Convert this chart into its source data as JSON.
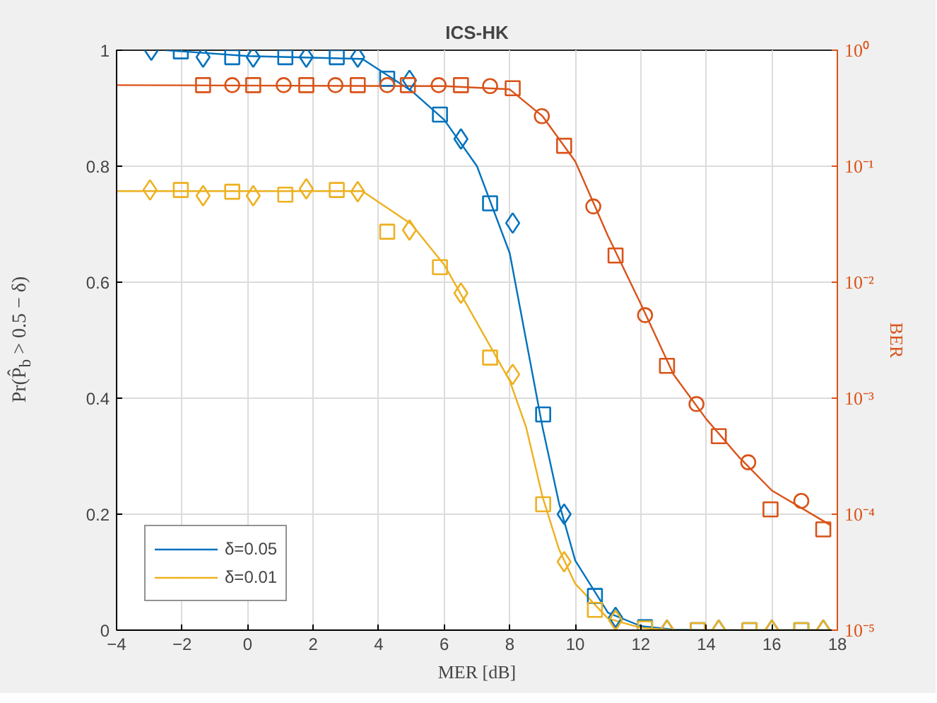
{
  "chart_data": {
    "type": "line",
    "title": "ICS-HK",
    "xlabel": "MER [dB]",
    "ylabel": "Pr(P̂$_{b}$ > 0.5 − δ)",
    "y2label": "BER",
    "xlim": [
      -4,
      18
    ],
    "xticks": [
      -4,
      -2,
      0,
      2,
      4,
      6,
      8,
      10,
      12,
      14,
      16,
      18
    ],
    "ylim": [
      0,
      1
    ],
    "yticks": [
      0,
      0.2,
      0.4,
      0.6,
      0.8,
      1
    ],
    "y2lim": [
      1e-05,
      1
    ],
    "y2ticks": [
      {
        "value": 1e-05,
        "label": "10⁻⁵"
      },
      {
        "value": 0.0001,
        "label": "10⁻⁴"
      },
      {
        "value": 0.001,
        "label": "10⁻³"
      },
      {
        "value": 0.01,
        "label": "10⁻²"
      },
      {
        "value": 0.1,
        "label": "10⁻¹"
      },
      {
        "value": 1,
        "label": "10⁰"
      }
    ],
    "log": "y2",
    "grid": true,
    "legend": "bottom left",
    "series": [
      {
        "name": "δ=0.05",
        "color": "#0072bd",
        "marker": "none",
        "x": [
          -2.5,
          0,
          3.5,
          5,
          6,
          7,
          8,
          8.5,
          9,
          9.5,
          10,
          11,
          12,
          13,
          14,
          17.8
        ],
        "values": [
          1.0,
          0.99,
          0.985,
          0.93,
          0.88,
          0.8,
          0.65,
          0.5,
          0.35,
          0.22,
          0.12,
          0.03,
          0.007,
          0.001,
          0,
          0
        ]
      },
      {
        "name": "δ=0.01",
        "color": "#edb120",
        "marker": "none",
        "x": [
          -4,
          3.5,
          5,
          6,
          7,
          8,
          8.5,
          9,
          9.5,
          10,
          11,
          12,
          13,
          17.8
        ],
        "values": [
          0.757,
          0.757,
          0.7,
          0.63,
          0.53,
          0.43,
          0.35,
          0.23,
          0.14,
          0.08,
          0.02,
          0.004,
          0,
          0
        ]
      },
      {
        "axis": "y2",
        "color": "#d95319",
        "marker": "none",
        "x": [
          -4,
          6,
          8,
          9,
          10,
          11,
          12,
          13,
          14,
          15,
          16,
          17.8
        ],
        "values": [
          0.5,
          0.49,
          0.46,
          0.27,
          0.11,
          0.025,
          0.0065,
          0.0016,
          0.00066,
          0.00031,
          0.00016,
          8e-05
        ]
      },
      {
        "type": "scatter",
        "color": "#0072bd",
        "marker": "square",
        "x": [
          -2.04,
          -0.47,
          1.15,
          2.72,
          4.26,
          5.87,
          7.4,
          9.02,
          10.6,
          12.13,
          13.74,
          15.32,
          16.9
        ],
        "values": [
          0.998,
          0.988,
          0.988,
          0.988,
          0.951,
          0.889,
          0.736,
          0.372,
          0.059,
          0.005,
          0,
          0,
          0
        ]
      },
      {
        "type": "scatter",
        "color": "#0072bd",
        "marker": "diamond",
        "x": [
          -2.94,
          -1.36,
          0.17,
          1.79,
          3.36,
          4.94,
          6.51,
          8.09,
          9.66,
          11.23,
          12.8,
          14.38,
          16.0,
          17.57
        ],
        "values": [
          1.0,
          0.988,
          0.988,
          0.988,
          0.988,
          0.948,
          0.847,
          0.702,
          0.2,
          0.022,
          0,
          0,
          0,
          0
        ]
      },
      {
        "type": "scatter",
        "color": "#edb120",
        "marker": "square",
        "x": [
          -2.04,
          -0.47,
          1.15,
          2.72,
          4.26,
          5.87,
          7.4,
          9.02,
          10.6,
          12.13,
          13.74,
          15.32,
          16.9
        ],
        "values": [
          0.759,
          0.756,
          0.751,
          0.759,
          0.687,
          0.626,
          0.47,
          0.217,
          0.035,
          0.003,
          0,
          0,
          0
        ]
      },
      {
        "type": "scatter",
        "color": "#edb120",
        "marker": "diamond",
        "x": [
          -2.98,
          -1.36,
          0.17,
          1.79,
          3.36,
          4.94,
          6.51,
          8.09,
          9.66,
          11.23,
          12.8,
          14.38,
          16.0,
          17.57
        ],
        "values": [
          0.759,
          0.749,
          0.749,
          0.761,
          0.756,
          0.69,
          0.581,
          0.441,
          0.118,
          0.017,
          0,
          0,
          0,
          0
        ]
      },
      {
        "type": "scatter",
        "axis": "y2",
        "color": "#d95319",
        "marker": "square",
        "x": [
          -1.36,
          0.17,
          1.79,
          3.36,
          4.89,
          6.51,
          8.09,
          9.66,
          11.23,
          12.8,
          14.38,
          15.96,
          17.57
        ],
        "values": [
          0.5,
          0.5,
          0.5,
          0.5,
          0.5,
          0.5,
          0.47,
          0.15,
          0.017,
          0.0019,
          0.00047,
          0.00011,
          7.4e-05
        ]
      },
      {
        "type": "scatter",
        "axis": "y2",
        "color": "#d95319",
        "marker": "circle",
        "x": [
          -0.47,
          1.1,
          2.68,
          4.26,
          5.83,
          7.4,
          8.98,
          10.55,
          12.13,
          13.7,
          15.28,
          16.9
        ],
        "values": [
          0.5,
          0.5,
          0.5,
          0.5,
          0.5,
          0.49,
          0.27,
          0.045,
          0.0052,
          0.00089,
          0.00028,
          0.00013
        ]
      }
    ]
  }
}
